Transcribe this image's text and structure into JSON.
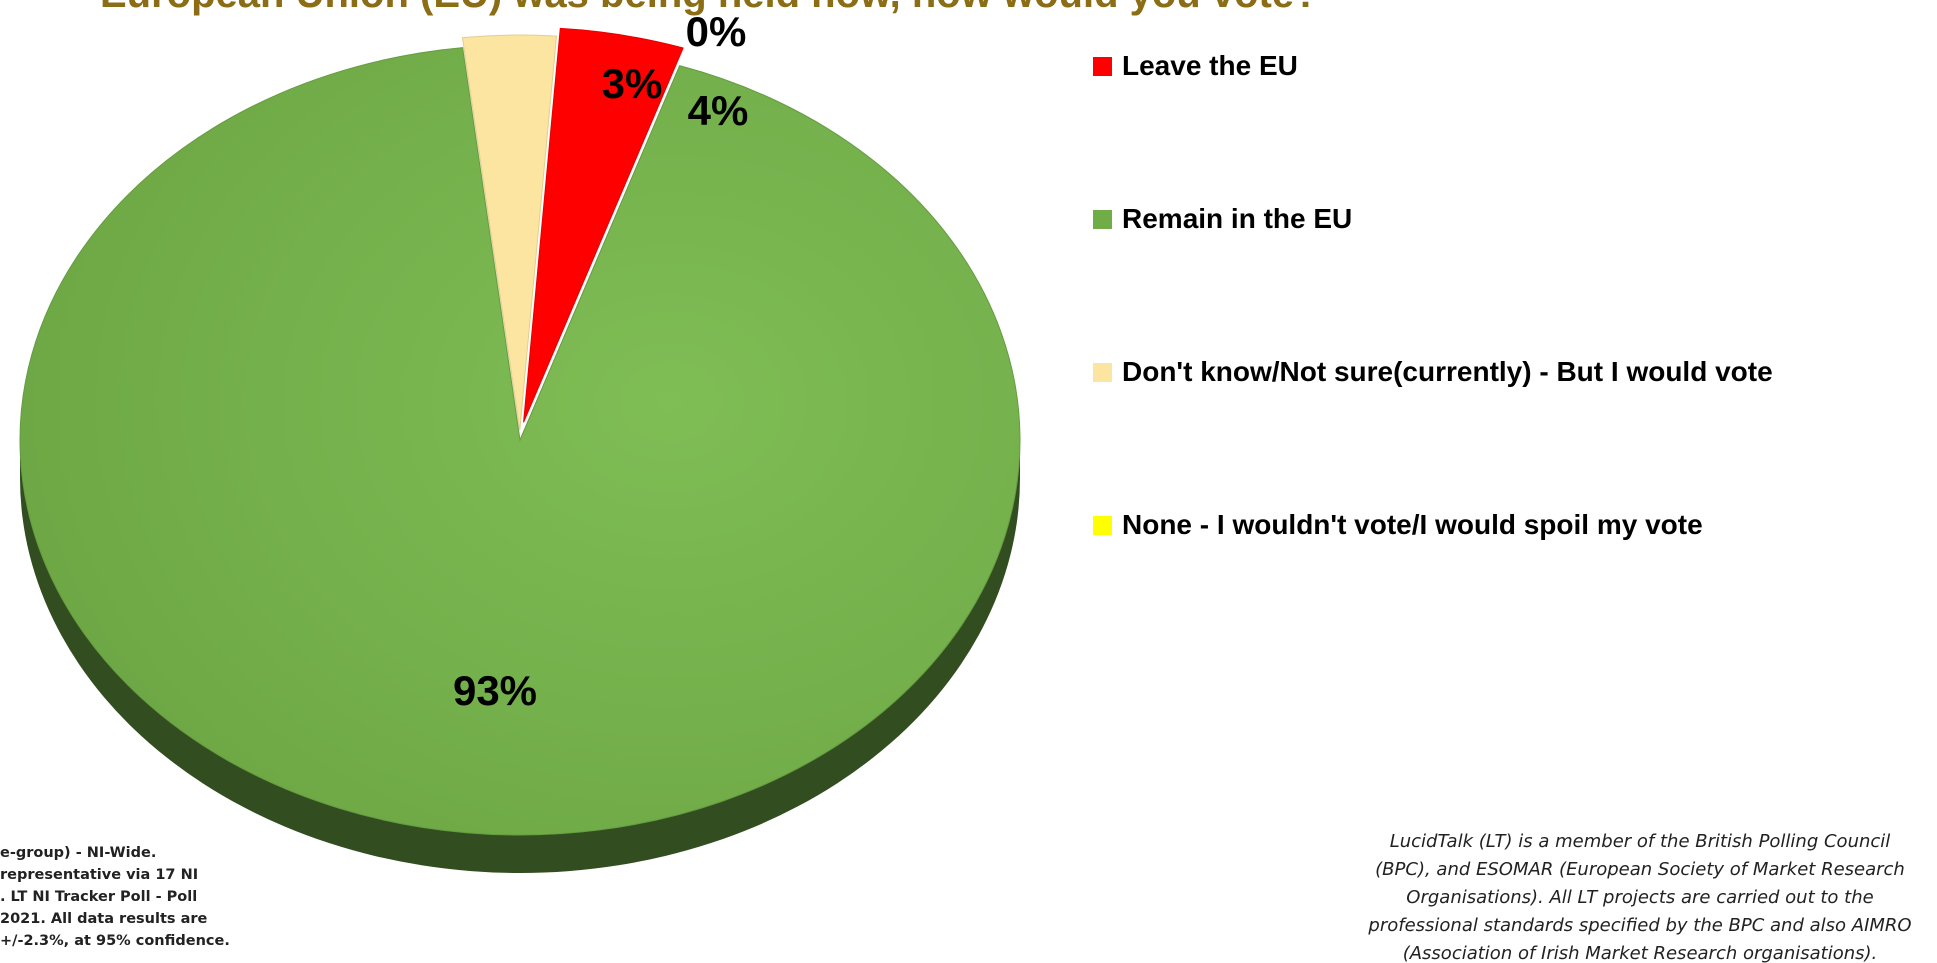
{
  "title": "European Union (EU) was being held now, how would you vote?",
  "chart_data": {
    "type": "pie",
    "categories": [
      "Leave the EU",
      "Remain in the EU",
      "Don't know/Not sure(currently) - But I would vote",
      "None - I wouldn't vote/I would spoil my vote"
    ],
    "values": [
      4,
      93,
      3,
      0
    ],
    "data_labels": [
      "4%",
      "93%",
      "3%",
      "0%"
    ],
    "colors": [
      "#ff0000",
      "#70ad47",
      "#fce5a0",
      "#ffff00"
    ],
    "exploded": true,
    "style": "3d-tilted",
    "legend_position": "right"
  },
  "notes": {
    "left_lines": [
      "e-group) - NI-Wide.",
      "representative via 17 NI",
      ". LT NI Tracker Poll - Poll",
      "2021.  All data results are",
      "+/-2.3%, at 95% confidence."
    ],
    "right_lines": [
      "LucidTalk (LT) is a member of the British Polling Council",
      "(BPC), and ESOMAR (European Society of Market Research",
      "Organisations).  All LT projects are carried out to the",
      "professional standards specified by the BPC and also AIMRO",
      "(Association  of Irish Market Research organisations)."
    ]
  }
}
